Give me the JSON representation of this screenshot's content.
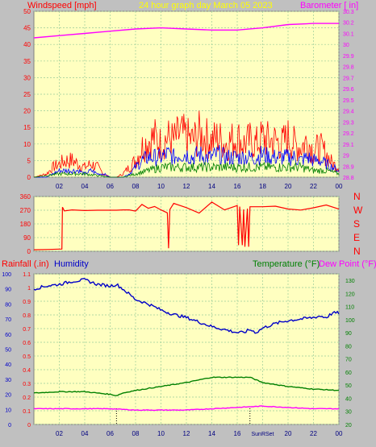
{
  "header": {
    "wind_label": "Windspeed [mph]",
    "title": "24 hour graph day   March 05 2023",
    "baro_label": "Barometer [ in]"
  },
  "rain_label": "Rainfall (.in)",
  "humidity_label": "Humidity",
  "temp_label": "Temperature (°F)",
  "dew_label": "Dew Point (°F)",
  "compass_labels": [
    "N",
    "W",
    "S",
    "E",
    "N"
  ],
  "colors": {
    "background": "#c0c0c0",
    "plot": "#ffffc0",
    "windspeed": "#ff0000",
    "wind_avg": "#0000ff",
    "wind_low": "#008000",
    "barometer": "#ff00ff",
    "direction": "#ff0000",
    "humidity": "#0000c8",
    "temperature": "#008000",
    "dewpoint": "#ff00ff",
    "grid": "#99cc99"
  },
  "chart_data": [
    {
      "type": "line",
      "title": "24 hour graph day   March 05 2023",
      "ylabel": "Windspeed [mph]",
      "y2label": "Barometer [ in]",
      "ylim": [
        0,
        50
      ],
      "y2lim": [
        28.8,
        30.3
      ],
      "yticks": [
        "0",
        "5",
        "10",
        "15",
        "20",
        "25",
        "30",
        "35",
        "40",
        "45",
        "50"
      ],
      "y2ticks": [
        "28.8",
        "28.9",
        "29",
        "29.1",
        "29.2",
        "29.3",
        "29.4",
        "29.5",
        "29.6",
        "29.7",
        "29.8",
        "29.9",
        "30",
        "30.1",
        "30.2",
        "30.3"
      ],
      "xticks": [
        "02",
        "04",
        "06",
        "08",
        "10",
        "12",
        "14",
        "16",
        "18",
        "20",
        "22",
        "00"
      ],
      "x_hours": [
        0,
        24
      ],
      "series": [
        {
          "name": "gust",
          "x": [
            0,
            1,
            1.5,
            2,
            2.5,
            3,
            3.5,
            4,
            4.5,
            5,
            5.5,
            6,
            6.5,
            7,
            7.5,
            8,
            8.5,
            9,
            9.5,
            10,
            10.5,
            11,
            11.5,
            12,
            12.5,
            13,
            13.5,
            14,
            14.5,
            15,
            15.5,
            16,
            16.5,
            17,
            17.5,
            18,
            18.5,
            19,
            19.5,
            20,
            20.5,
            21,
            21.5,
            22,
            22.5,
            23,
            23.5,
            24
          ],
          "values": [
            0,
            1,
            3,
            4,
            5,
            5,
            4,
            3,
            4,
            3,
            1,
            0,
            0,
            1,
            3,
            5,
            9,
            11,
            12,
            10,
            12,
            11,
            13,
            12,
            11,
            13,
            12,
            11,
            12,
            10,
            11,
            12,
            10,
            11,
            10,
            12,
            11,
            11,
            10,
            12,
            10,
            9,
            11,
            8,
            9,
            7,
            4,
            3
          ]
        },
        {
          "name": "avg",
          "x": [
            0,
            1,
            1.5,
            2,
            2.5,
            3,
            3.5,
            4,
            4.5,
            5,
            5.5,
            6,
            6.5,
            7,
            7.5,
            8,
            8.5,
            9,
            9.5,
            10,
            10.5,
            11,
            11.5,
            12,
            12.5,
            13,
            13.5,
            14,
            14.5,
            15,
            15.5,
            16,
            16.5,
            17,
            17.5,
            18,
            18.5,
            19,
            19.5,
            20,
            20.5,
            21,
            21.5,
            22,
            22.5,
            23,
            23.5,
            24
          ],
          "values": [
            0,
            0,
            1,
            2,
            2,
            2,
            2,
            1,
            2,
            1,
            1,
            0,
            0,
            0,
            1,
            3,
            5,
            6,
            6,
            6,
            7,
            6,
            7,
            7,
            6,
            7,
            6,
            6,
            7,
            6,
            6,
            6,
            6,
            6,
            6,
            7,
            6,
            6,
            6,
            6,
            6,
            5,
            6,
            5,
            5,
            4,
            3,
            2
          ]
        },
        {
          "name": "low",
          "x": [
            0,
            2,
            4,
            6,
            7,
            8,
            9,
            10,
            11,
            12,
            13,
            14,
            15,
            16,
            17,
            18,
            19,
            20,
            21,
            22,
            23,
            24
          ],
          "values": [
            0,
            1,
            1,
            0,
            0,
            1,
            2,
            3,
            3,
            3,
            3,
            3,
            3,
            3,
            3,
            3,
            3,
            3,
            3,
            2,
            2,
            1
          ]
        },
        {
          "name": "barometer",
          "x": [
            0,
            2,
            4,
            6,
            8,
            10,
            12,
            14,
            16,
            18,
            20,
            22,
            24
          ],
          "values": [
            30.06,
            30.08,
            30.1,
            30.12,
            30.14,
            30.15,
            30.14,
            30.13,
            30.13,
            30.15,
            30.18,
            30.19,
            30.19
          ]
        }
      ]
    },
    {
      "type": "line",
      "ylim": [
        0,
        360
      ],
      "yticks": [
        "0",
        "90",
        "180",
        "270",
        "360"
      ],
      "series": [
        {
          "name": "direction",
          "x": [
            0,
            1.2,
            2.2,
            2.25,
            2.4,
            3,
            4,
            5,
            6,
            6.5,
            7,
            7.5,
            8,
            8.5,
            9,
            9.5,
            10,
            10.5,
            10.6,
            10.7,
            11,
            12,
            13,
            14,
            15,
            16,
            16.1,
            16.2,
            16.4,
            16.5,
            16.6,
            16.8,
            16.9,
            17,
            18,
            19,
            20,
            21,
            22,
            23,
            24
          ],
          "values": [
            10,
            12,
            15,
            290,
            265,
            272,
            268,
            270,
            270,
            270,
            272,
            272,
            280,
            300,
            270,
            310,
            280,
            270,
            20,
            270,
            300,
            290,
            270,
            310,
            280,
            290,
            40,
            290,
            40,
            290,
            30,
            290,
            30,
            290,
            300,
            280,
            290,
            280,
            300,
            290,
            280
          ]
        }
      ]
    },
    {
      "type": "line",
      "ylabel": "Rainfall (.in)",
      "y2label": "Temperature (°F)",
      "ylim": [
        0,
        1.1
      ],
      "y2lim": [
        20,
        135
      ],
      "humidity_lim": [
        0,
        100
      ],
      "yticks": [
        "0",
        "0.1",
        "0.2",
        "0.3",
        "0.4",
        "0.5",
        "0.6",
        "0.7",
        "0.8",
        "0.9",
        "1",
        "1.1"
      ],
      "humidity_ticks": [
        "0",
        "10",
        "20",
        "30",
        "40",
        "50",
        "60",
        "70",
        "80",
        "90",
        "100"
      ],
      "y2ticks": [
        "20",
        "30",
        "40",
        "50",
        "60",
        "70",
        "80",
        "90",
        "100",
        "110",
        "120",
        "130"
      ],
      "xticks": [
        "02",
        "04",
        "06",
        "08",
        "10",
        "12",
        "14",
        "16",
        "SunRSet",
        "20",
        "22",
        "00"
      ],
      "series": [
        {
          "name": "Humidity",
          "x": [
            0,
            1,
            2,
            3,
            4,
            5,
            6,
            6.5,
            7,
            8,
            9,
            10,
            11,
            12,
            13,
            14,
            15,
            16,
            16.5,
            17,
            17.5,
            18,
            19,
            20,
            21,
            22,
            22.5,
            23,
            23.5,
            24
          ],
          "values": [
            90,
            92,
            93,
            95,
            96,
            93,
            92,
            93,
            90,
            83,
            80,
            76,
            73,
            71,
            68,
            65,
            63,
            61,
            61,
            63,
            61,
            64,
            67,
            69,
            70,
            71,
            72,
            71,
            74,
            74
          ]
        },
        {
          "name": "Temperature (°F)",
          "x": [
            0,
            2,
            4,
            6,
            6.5,
            7,
            8,
            10,
            12,
            14,
            16,
            17,
            18,
            20,
            22,
            24
          ],
          "values": [
            44,
            45,
            45,
            43,
            42,
            44,
            46,
            49,
            52,
            56,
            56,
            56,
            52,
            49,
            47,
            46
          ]
        },
        {
          "name": "Dew Point (°F)",
          "x": [
            0,
            2,
            4,
            6,
            8,
            10,
            12,
            14,
            16,
            18,
            20,
            22,
            24
          ],
          "values": [
            32,
            32,
            32,
            32,
            31,
            31,
            31,
            32,
            33,
            34,
            33,
            32,
            32
          ]
        }
      ]
    }
  ]
}
